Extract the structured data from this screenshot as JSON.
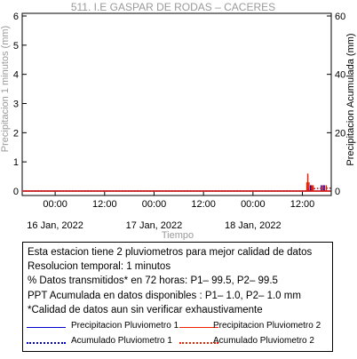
{
  "chart_data": {
    "type": "line",
    "title": "511. I.E GASPAR DE RODAS – CACERES",
    "xlabel": "Tiempo",
    "ylabel_left": "Precipitacion 1 minutos (mm)",
    "ylabel_right": "Precipitacion Acumulada (mm)",
    "ylim_left": [
      0,
      6
    ],
    "ylim_right": [
      0,
      60
    ],
    "yticks_left": [
      "0",
      "1",
      "2",
      "3",
      "4",
      "5",
      "6"
    ],
    "yticks_right": [
      "0",
      "20",
      "40",
      "60"
    ],
    "xtick_times": [
      "00:00",
      "12:00",
      "00:00",
      "12:00",
      "00:00",
      "12:00"
    ],
    "xtick_dates": [
      "16 Jan, 2022",
      "17 Jan, 2022",
      "18 Jan, 2022"
    ],
    "x_hours_range": [
      -8,
      67
    ],
    "series": [
      {
        "name": "Precipitacion Pluviometro 1",
        "color": "#0000cc",
        "style": "solid",
        "x_hours": [
          61.4,
          62.0,
          64.6,
          65.3
        ],
        "values": [
          0.1,
          0.2,
          0.2,
          0.2
        ]
      },
      {
        "name": "Precipitacion Pluviometro 2",
        "color": "#ee2200",
        "style": "solid",
        "x_hours": [
          61.1,
          61.3,
          61.6,
          62.3,
          62.6,
          65.0,
          65.8
        ],
        "values": [
          0.3,
          0.6,
          0.3,
          0.2,
          0.2,
          0.2,
          0.2
        ]
      },
      {
        "name": "Acumulado Pluviometro 1",
        "color": "#0000cc",
        "style": "dotted",
        "x_hours": [
          -8,
          61.0,
          61.5,
          62.5,
          67
        ],
        "values": [
          0,
          0,
          0.4,
          0.8,
          1.0
        ]
      },
      {
        "name": "Acumulado Pluviometro 2",
        "color": "#ee2200",
        "style": "dotted",
        "x_hours": [
          -8,
          61.0,
          61.5,
          62.5,
          67
        ],
        "values": [
          0,
          0,
          0.5,
          0.9,
          1.0
        ]
      }
    ]
  },
  "info": {
    "line1": "Esta estacion tiene 2 pluviometros para mejor calidad de datos",
    "line2": "Resolucion temporal: 1 minutos",
    "line3": "% Datos transmitidos* en 72 horas: P1– 99.5, P2– 99.5",
    "line4": "PPT Acumulada en datos disponibles : P1–  1.0, P2–  1.0 mm",
    "line5": "*Calidad de datos aun sin verificar exhaustivamente"
  },
  "legend": {
    "p1": "Precipitacion Pluviometro 1",
    "p2": "Precipitacion Pluviometro 2",
    "a1": "Acumulado Pluviometro 1",
    "a2": "Acumulado Pluviometro 2"
  }
}
